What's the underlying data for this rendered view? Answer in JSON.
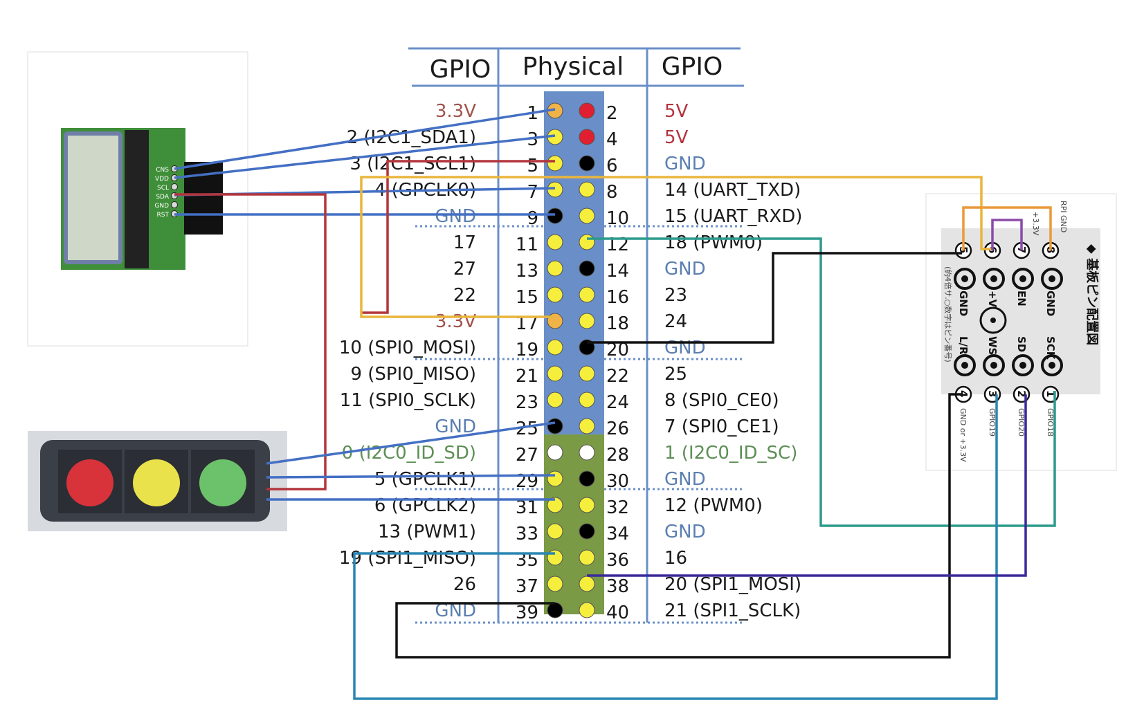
{
  "header": {
    "left": "GPIO",
    "center": "Physical",
    "right": "GPIO"
  },
  "colors": {
    "gpio": "#1a1a1a",
    "power33": "#a0524c",
    "power5": "#b4323c",
    "gnd": "#5b7fb0",
    "i2c0": "#5d8f55",
    "header_blue": "#6a8fc8",
    "header_green": "#7a9a45",
    "pin_yellow": "#f5ee3c",
    "pin_orange": "#efb347",
    "pin_red": "#e02030",
    "pin_black": "#000000",
    "pin_white": "#ffffff"
  },
  "rows": [
    {
      "left": "3.3V",
      "left_c": "power33",
      "lp": "1",
      "rp": "2",
      "right": "5V",
      "right_c": "power5",
      "lpin": "pin_orange",
      "rpin": "pin_red"
    },
    {
      "left": "2 (I2C1_SDA1)",
      "left_c": "gpio",
      "lp": "3",
      "rp": "4",
      "right": "5V",
      "right_c": "power5",
      "lpin": "pin_yellow",
      "rpin": "pin_red"
    },
    {
      "left": "3 (I2C1_SCL1)",
      "left_c": "gpio",
      "lp": "5",
      "rp": "6",
      "right": "GND",
      "right_c": "gnd",
      "lpin": "pin_yellow",
      "rpin": "pin_black"
    },
    {
      "left": "4 (GPCLK0)",
      "left_c": "gpio",
      "lp": "7",
      "rp": "8",
      "right": "14 (UART_TXD)",
      "right_c": "gpio",
      "lpin": "pin_yellow",
      "rpin": "pin_yellow"
    },
    {
      "left": "GND",
      "left_c": "gnd",
      "lp": "9",
      "rp": "10",
      "right": "15 (UART_RXD)",
      "right_c": "gpio",
      "lpin": "pin_black",
      "rpin": "pin_yellow"
    },
    {
      "left": "17",
      "left_c": "gpio",
      "lp": "11",
      "rp": "12",
      "right": "18 (PWM0)",
      "right_c": "gpio",
      "lpin": "pin_yellow",
      "rpin": "pin_yellow"
    },
    {
      "left": "27",
      "left_c": "gpio",
      "lp": "13",
      "rp": "14",
      "right": "GND",
      "right_c": "gnd",
      "lpin": "pin_yellow",
      "rpin": "pin_black"
    },
    {
      "left": "22",
      "left_c": "gpio",
      "lp": "15",
      "rp": "16",
      "right": "23",
      "right_c": "gpio",
      "lpin": "pin_yellow",
      "rpin": "pin_yellow"
    },
    {
      "left": "3.3V",
      "left_c": "power33",
      "lp": "17",
      "rp": "18",
      "right": "24",
      "right_c": "gpio",
      "lpin": "pin_orange",
      "rpin": "pin_yellow"
    },
    {
      "left": "10 (SPI0_MOSI)",
      "left_c": "gpio",
      "lp": "19",
      "rp": "20",
      "right": "GND",
      "right_c": "gnd",
      "lpin": "pin_yellow",
      "rpin": "pin_black"
    },
    {
      "left": "9 (SPI0_MISO)",
      "left_c": "gpio",
      "lp": "21",
      "rp": "22",
      "right": "25",
      "right_c": "gpio",
      "lpin": "pin_yellow",
      "rpin": "pin_yellow"
    },
    {
      "left": "11 (SPI0_SCLK)",
      "left_c": "gpio",
      "lp": "23",
      "rp": "24",
      "right": "8 (SPI0_CE0)",
      "right_c": "gpio",
      "lpin": "pin_yellow",
      "rpin": "pin_yellow"
    },
    {
      "left": "GND",
      "left_c": "gnd",
      "lp": "25",
      "rp": "26",
      "right": "7 (SPI0_CE1)",
      "right_c": "gpio",
      "lpin": "pin_black",
      "rpin": "pin_yellow"
    },
    {
      "left": "0 (I2C0_ID_SD)",
      "left_c": "i2c0",
      "lp": "27",
      "rp": "28",
      "right": "1 (I2C0_ID_SC)",
      "right_c": "i2c0",
      "lpin": "pin_white",
      "rpin": "pin_white"
    },
    {
      "left": "5 (GPCLK1)",
      "left_c": "gpio",
      "lp": "29",
      "rp": "30",
      "right": "GND",
      "right_c": "gnd",
      "lpin": "pin_yellow",
      "rpin": "pin_black"
    },
    {
      "left": "6 (GPCLK2)",
      "left_c": "gpio",
      "lp": "31",
      "rp": "32",
      "right": "12 (PWM0)",
      "right_c": "gpio",
      "lpin": "pin_yellow",
      "rpin": "pin_yellow"
    },
    {
      "left": "13 (PWM1)",
      "left_c": "gpio",
      "lp": "33",
      "rp": "34",
      "right": "GND",
      "right_c": "gnd",
      "lpin": "pin_yellow",
      "rpin": "pin_black"
    },
    {
      "left": "19 (SPI1_MISO)",
      "left_c": "gpio",
      "lp": "35",
      "rp": "36",
      "right": "16",
      "right_c": "gpio",
      "lpin": "pin_yellow",
      "rpin": "pin_yellow"
    },
    {
      "left": "26",
      "left_c": "gpio",
      "lp": "37",
      "rp": "38",
      "right": "20 (SPI1_MOSI)",
      "right_c": "gpio",
      "lpin": "pin_yellow",
      "rpin": "pin_yellow"
    },
    {
      "left": "GND",
      "left_c": "gnd",
      "lp": "39",
      "rp": "40",
      "right": "21 (SPI1_SCLK)",
      "right_c": "gpio",
      "lpin": "pin_black",
      "rpin": "pin_yellow"
    }
  ],
  "lcd_module": {
    "pin_labels": [
      "CNS",
      "VDD",
      "SCL",
      "SDA",
      "GND",
      "RST"
    ]
  },
  "mic_board": {
    "title": "◆ 基板ピン配置図",
    "note": "(約4倍サ.○数字はピン番号)",
    "top_side_label": "RPI GND",
    "top_side_label2": "+3.3V",
    "pad_labels": [
      "GND",
      "EN",
      "+V",
      "GND",
      "SCK",
      "SD",
      "WS",
      "L/R"
    ],
    "top_pins": [
      "5",
      "6",
      "7",
      "8"
    ],
    "bottom_pins": [
      "4",
      "3",
      "2",
      "1"
    ],
    "bottom_labels": [
      "GND or +3.3V",
      "GPIO19",
      "GPIO20",
      "GPIO18"
    ]
  }
}
